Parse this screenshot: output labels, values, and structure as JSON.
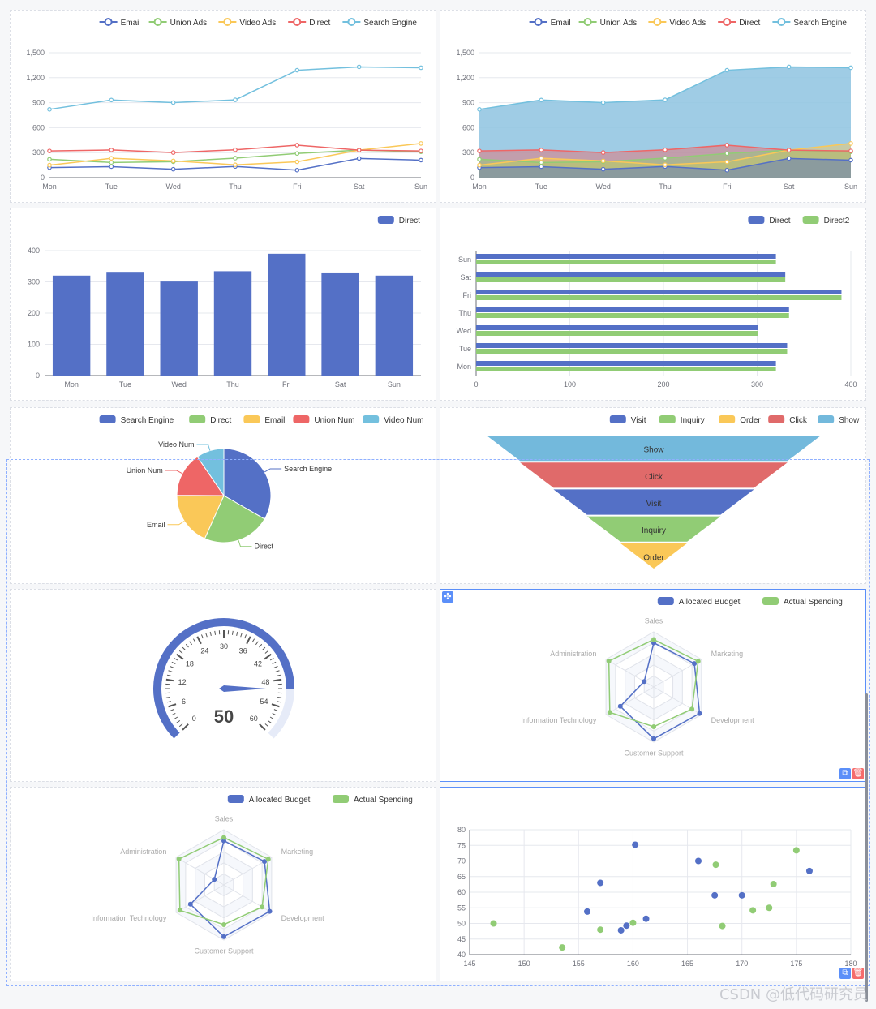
{
  "colors": {
    "blue": "#5470c6",
    "green": "#91cc75",
    "yellow": "#fac858",
    "red": "#ee6666",
    "cyan": "#73c0de",
    "area": "#8ec3e0",
    "funnelCyan": "#73b9dc",
    "funnelRed": "#e06a6a",
    "axis": "#6e7079",
    "grid": "#e6e8ee"
  },
  "icons": {
    "move": "✣",
    "copy": "⧉",
    "delete": "🗑"
  },
  "watermark": "CSDN @低代码研究员",
  "chart_data": [
    {
      "id": "line1",
      "type": "line",
      "categories": [
        "Mon",
        "Tue",
        "Wed",
        "Thu",
        "Fri",
        "Sat",
        "Sun"
      ],
      "legend": [
        "Email",
        "Union Ads",
        "Video Ads",
        "Direct",
        "Search Engine"
      ],
      "ylim": [
        0,
        1500
      ],
      "yticks": [
        "0",
        "300",
        "600",
        "900",
        "1,200",
        "1,500"
      ],
      "series": [
        {
          "name": "Email",
          "color": "#5470c6",
          "values": [
            120,
            132,
            101,
            134,
            90,
            230,
            210
          ]
        },
        {
          "name": "Union Ads",
          "color": "#91cc75",
          "values": [
            220,
            182,
            191,
            234,
            290,
            330,
            310
          ]
        },
        {
          "name": "Video Ads",
          "color": "#fac858",
          "values": [
            150,
            232,
            201,
            154,
            190,
            330,
            410
          ]
        },
        {
          "name": "Direct",
          "color": "#ee6666",
          "values": [
            320,
            332,
            301,
            334,
            390,
            330,
            320
          ]
        },
        {
          "name": "Search Engine",
          "color": "#73c0de",
          "values": [
            820,
            932,
            901,
            934,
            1290,
            1330,
            1320
          ]
        }
      ]
    },
    {
      "id": "area1",
      "type": "area",
      "categories": [
        "Mon",
        "Tue",
        "Wed",
        "Thu",
        "Fri",
        "Sat",
        "Sun"
      ],
      "legend": [
        "Email",
        "Union Ads",
        "Video Ads",
        "Direct",
        "Search Engine"
      ],
      "ylim": [
        0,
        1500
      ],
      "yticks": [
        "0",
        "300",
        "600",
        "900",
        "1,200",
        "1,500"
      ],
      "series": [
        {
          "name": "Email",
          "color": "#5470c6",
          "values": [
            120,
            132,
            101,
            134,
            90,
            230,
            210
          ]
        },
        {
          "name": "Union Ads",
          "color": "#91cc75",
          "values": [
            220,
            182,
            191,
            234,
            290,
            330,
            310
          ]
        },
        {
          "name": "Video Ads",
          "color": "#fac858",
          "values": [
            150,
            232,
            201,
            154,
            190,
            330,
            410
          ]
        },
        {
          "name": "Direct",
          "color": "#ee6666",
          "values": [
            320,
            332,
            301,
            334,
            390,
            330,
            320
          ]
        },
        {
          "name": "Search Engine",
          "color": "#73c0de",
          "values": [
            820,
            932,
            901,
            934,
            1290,
            1330,
            1320
          ]
        }
      ]
    },
    {
      "id": "bar1",
      "type": "bar",
      "categories": [
        "Mon",
        "Tue",
        "Wed",
        "Thu",
        "Fri",
        "Sat",
        "Sun"
      ],
      "legend": [
        "Direct"
      ],
      "ylim": [
        0,
        400
      ],
      "yticks": [
        "0",
        "100",
        "200",
        "300",
        "400"
      ],
      "series": [
        {
          "name": "Direct",
          "color": "#5470c6",
          "values": [
            320,
            332,
            301,
            334,
            390,
            330,
            320
          ]
        }
      ]
    },
    {
      "id": "hbar1",
      "type": "bar",
      "orientation": "horizontal",
      "categories": [
        "Mon",
        "Tue",
        "Wed",
        "Thu",
        "Fri",
        "Sat",
        "Sun"
      ],
      "legend": [
        "Direct",
        "Direct2"
      ],
      "xlim": [
        0,
        400
      ],
      "xticks": [
        "0",
        "100",
        "200",
        "300",
        "400"
      ],
      "series": [
        {
          "name": "Direct",
          "color": "#5470c6",
          "values": [
            320,
            332,
            301,
            334,
            390,
            330,
            320
          ]
        },
        {
          "name": "Direct2",
          "color": "#91cc75",
          "values": [
            320,
            332,
            301,
            334,
            390,
            330,
            320
          ]
        }
      ]
    },
    {
      "id": "pie1",
      "type": "pie",
      "legend": [
        "Search Engine",
        "Direct",
        "Email",
        "Union Num",
        "Video Num"
      ],
      "slices": [
        {
          "name": "Search Engine",
          "value": 1048,
          "color": "#5470c6"
        },
        {
          "name": "Direct",
          "value": 735,
          "color": "#91cc75"
        },
        {
          "name": "Email",
          "value": 580,
          "color": "#fac858"
        },
        {
          "name": "Union Num",
          "value": 484,
          "color": "#ee6666"
        },
        {
          "name": "Video Num",
          "value": 300,
          "color": "#73c0de"
        }
      ]
    },
    {
      "id": "funnel1",
      "type": "funnel",
      "legend": [
        "Visit",
        "Inquiry",
        "Order",
        "Click",
        "Show"
      ],
      "stages": [
        {
          "name": "Show",
          "value": 100,
          "color": "#73b9dc"
        },
        {
          "name": "Click",
          "value": 80,
          "color": "#e06a6a"
        },
        {
          "name": "Visit",
          "value": 60,
          "color": "#5470c6"
        },
        {
          "name": "Inquiry",
          "value": 40,
          "color": "#91cc75"
        },
        {
          "name": "Order",
          "value": 20,
          "color": "#fac858"
        }
      ]
    },
    {
      "id": "gauge1",
      "type": "gauge",
      "value": 50,
      "min": 0,
      "max": 60,
      "ticks": [
        "0",
        "6",
        "12",
        "18",
        "24",
        "30",
        "36",
        "42",
        "48",
        "54",
        "60"
      ]
    },
    {
      "id": "radar1",
      "type": "radar",
      "legend": [
        "Allocated Budget",
        "Actual Spending"
      ],
      "indicators": [
        "Sales",
        "Marketing",
        "Development",
        "Customer Support",
        "Information Technology",
        "Administration"
      ],
      "series": [
        {
          "name": "Allocated Budget",
          "color": "#5470c6",
          "values": [
            0.8,
            0.85,
            0.96,
            0.94,
            0.7,
            0.2
          ]
        },
        {
          "name": "Actual Spending",
          "color": "#91cc75",
          "values": [
            0.86,
            0.93,
            0.8,
            0.72,
            0.92,
            0.94
          ]
        }
      ]
    },
    {
      "id": "radar2",
      "type": "radar",
      "legend": [
        "Allocated Budget",
        "Actual Spending"
      ],
      "indicators": [
        "Sales",
        "Marketing",
        "Development",
        "Customer Support",
        "Information Technology",
        "Administration"
      ],
      "series": [
        {
          "name": "Allocated Budget",
          "color": "#5470c6",
          "values": [
            0.8,
            0.85,
            0.96,
            0.94,
            0.7,
            0.2
          ]
        },
        {
          "name": "Actual Spending",
          "color": "#91cc75",
          "values": [
            0.86,
            0.93,
            0.8,
            0.72,
            0.92,
            0.94
          ]
        }
      ]
    },
    {
      "id": "scatter1",
      "type": "scatter",
      "xlim": [
        145,
        180
      ],
      "ylim": [
        40,
        80
      ],
      "xticks": [
        "145",
        "150",
        "155",
        "160",
        "165",
        "170",
        "175",
        "180"
      ],
      "yticks": [
        "40",
        "45",
        "50",
        "55",
        "60",
        "65",
        "70",
        "75",
        "80"
      ],
      "series": [
        {
          "name": "",
          "color": "#5470c6",
          "points": [
            [
              160.2,
              75.2
            ],
            [
              157,
              63
            ],
            [
              155.8,
              53.8
            ],
            [
              158.9,
              47.8
            ],
            [
              159.4,
              49.3
            ],
            [
              161.2,
              51.5
            ],
            [
              166,
              70
            ],
            [
              167.5,
              59
            ],
            [
              170,
              59
            ],
            [
              176.2,
              66.8
            ]
          ]
        },
        {
          "name": "",
          "color": "#91cc75",
          "points": [
            [
              147.2,
              50
            ],
            [
              153.5,
              42.3
            ],
            [
              157,
              48
            ],
            [
              160,
              50.2
            ],
            [
              167.6,
              68.8
            ],
            [
              168.2,
              49.2
            ],
            [
              171,
              54.2
            ],
            [
              172.5,
              55
            ],
            [
              172.9,
              62.6
            ],
            [
              175,
              73.4
            ]
          ]
        }
      ]
    }
  ]
}
